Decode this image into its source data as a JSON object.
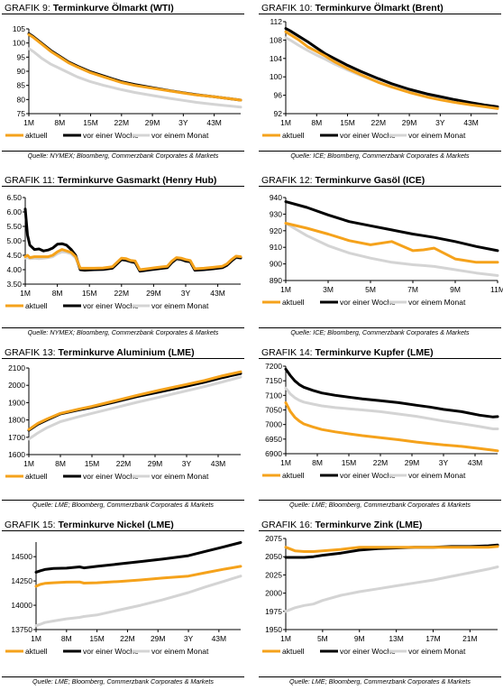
{
  "colors": {
    "aktuell": "#f5a21b",
    "woche": "#000000",
    "monat": "#d4d4d4"
  },
  "panels": [
    {
      "grafik": "GRAFIK 9:",
      "title": "Terminkurve Ölmarkt (WTI)",
      "source": "Quelle: NYMEX; Bloomberg, Commerzbank Corporates & Markets",
      "chart_data": {
        "type": "line",
        "x": [
          1,
          2,
          4,
          6,
          8,
          10,
          12,
          15,
          18,
          22,
          25,
          29,
          33,
          36,
          39,
          43,
          46,
          49
        ],
        "categories": [
          "1M",
          "8M",
          "15M",
          "22M",
          "29M",
          "3Y",
          "43M"
        ],
        "yticks": [
          75,
          80,
          85,
          90,
          95,
          100,
          105
        ],
        "ylim": [
          75,
          105
        ],
        "xlim": [
          1,
          49
        ],
        "series": [
          {
            "name": "aktuell",
            "key": "aktuell",
            "values": [
              103.0,
              102.0,
              99.5,
              97.0,
              95.0,
              93.0,
              91.5,
              89.5,
              88.0,
              86.0,
              85.0,
              84.0,
              83.0,
              82.3,
              81.6,
              81.0,
              80.4,
              79.8
            ]
          },
          {
            "name": "vor einer Woche",
            "key": "woche",
            "values": [
              103.3,
              102.3,
              99.8,
              97.3,
              95.3,
              93.3,
              91.8,
              89.8,
              88.3,
              86.3,
              85.3,
              84.2,
              83.1,
              82.4,
              81.7,
              81.0,
              80.4,
              79.8
            ]
          },
          {
            "name": "vor einem Monat",
            "key": "monat",
            "values": [
              98.0,
              97.0,
              94.5,
              92.5,
              91.0,
              89.5,
              88.0,
              86.3,
              85.0,
              83.5,
              82.5,
              81.4,
              80.4,
              79.7,
              79.0,
              78.3,
              77.8,
              77.3
            ]
          }
        ]
      }
    },
    {
      "grafik": "GRAFIK 10:",
      "title": "Terminkurve Ölmarkt (Brent)",
      "source": "Quelle: ICE; Bloomberg, Commerzbank Corporates & Markets",
      "chart_data": {
        "type": "line",
        "x": [
          1,
          2,
          4,
          6,
          8,
          10,
          12,
          15,
          18,
          22,
          25,
          29,
          33,
          36,
          39,
          43,
          46,
          49
        ],
        "categories": [
          "1M",
          "8M",
          "15M",
          "22M",
          "29M",
          "3Y",
          "43M"
        ],
        "yticks": [
          92,
          96,
          100,
          104,
          108,
          112
        ],
        "ylim": [
          92,
          112
        ],
        "xlim": [
          1,
          49
        ],
        "series": [
          {
            "name": "aktuell",
            "key": "aktuell",
            "values": [
              109.8,
              109.2,
              108.0,
              106.5,
              105.5,
              104.5,
              103.3,
              101.8,
              100.5,
              98.8,
              97.8,
              96.6,
              95.6,
              95.0,
              94.5,
              93.9,
              93.5,
              93.1
            ]
          },
          {
            "name": "vor einer Woche",
            "key": "woche",
            "values": [
              110.5,
              110.0,
              108.8,
              107.6,
              106.3,
              105.0,
              104.0,
              102.5,
              101.2,
              99.6,
              98.5,
              97.3,
              96.3,
              95.7,
              95.1,
              94.4,
              93.9,
              93.5
            ]
          },
          {
            "name": "vor einem Monat",
            "key": "monat",
            "values": [
              108.5,
              108.0,
              106.8,
              105.7,
              104.7,
              103.8,
              102.8,
              101.5,
              100.3,
              98.8,
              97.8,
              96.7,
              95.8,
              95.2,
              94.6,
              94.0,
              93.6,
              93.2
            ]
          }
        ]
      }
    },
    {
      "grafik": "GRAFIK 11:",
      "title": "Terminkurve Gasmarkt (Henry Hub)",
      "source": "Quelle: NYMEX; Bloomberg, Commerzbank Corporates & Markets",
      "chart_data": {
        "type": "line",
        "x": [
          1,
          1.5,
          2,
          3,
          4,
          5,
          6,
          7,
          8,
          9,
          10,
          11,
          12,
          13,
          14,
          15,
          16,
          18,
          20,
          21,
          22,
          23,
          24,
          25,
          26,
          27,
          28,
          30,
          32,
          33,
          34,
          35,
          36,
          37,
          38,
          40,
          42,
          44,
          45,
          46,
          47,
          48
        ],
        "categories": [
          "1M",
          "8M",
          "15M",
          "22M",
          "29M",
          "3Y",
          "43M"
        ],
        "yticks": [
          3.5,
          4.0,
          4.5,
          5.0,
          5.5,
          6.0,
          6.5
        ],
        "ylim": [
          3.5,
          6.5
        ],
        "xlim": [
          1,
          48
        ],
        "series": [
          {
            "name": "aktuell",
            "key": "aktuell",
            "values": [
              4.45,
              4.5,
              4.42,
              4.45,
              4.45,
              4.45,
              4.45,
              4.5,
              4.62,
              4.7,
              4.65,
              4.6,
              4.45,
              4.05,
              4.05,
              4.05,
              4.05,
              4.06,
              4.1,
              4.25,
              4.4,
              4.38,
              4.32,
              4.3,
              4.0,
              4.02,
              4.04,
              4.08,
              4.12,
              4.3,
              4.42,
              4.4,
              4.35,
              4.32,
              4.03,
              4.05,
              4.08,
              4.12,
              4.2,
              4.35,
              4.47,
              4.45
            ]
          },
          {
            "name": "vor einer Woche",
            "key": "woche",
            "values": [
              6.1,
              5.2,
              4.85,
              4.7,
              4.72,
              4.65,
              4.68,
              4.75,
              4.88,
              4.9,
              4.85,
              4.7,
              4.5,
              4.0,
              3.98,
              3.99,
              4.0,
              4.01,
              4.05,
              4.2,
              4.35,
              4.33,
              4.28,
              4.25,
              3.95,
              3.97,
              3.99,
              4.03,
              4.07,
              4.25,
              4.38,
              4.36,
              4.3,
              4.28,
              3.98,
              4.0,
              4.03,
              4.07,
              4.15,
              4.3,
              4.43,
              4.41
            ]
          },
          {
            "name": "vor einem Monat",
            "key": "monat",
            "values": [
              4.4,
              4.42,
              4.38,
              4.4,
              4.38,
              4.4,
              4.42,
              4.45,
              4.55,
              4.62,
              4.6,
              4.55,
              4.4,
              4.05,
              4.02,
              4.03,
              4.04,
              4.04,
              4.08,
              4.22,
              4.33,
              4.3,
              4.26,
              4.22,
              3.98,
              4.0,
              4.01,
              4.05,
              4.08,
              4.24,
              4.34,
              4.32,
              4.28,
              4.24,
              4.0,
              4.02,
              4.05,
              4.09,
              4.17,
              4.3,
              4.4,
              4.38
            ]
          }
        ]
      }
    },
    {
      "grafik": "GRAFIK 12:",
      "title": "Terminkurve Gasöl (ICE)",
      "source": "Quelle: ICE; Bloomberg, Commerzbank Corporates & Markets",
      "chart_data": {
        "type": "line",
        "x": [
          1,
          2,
          3,
          4,
          5,
          6,
          7,
          7.5,
          8,
          9,
          10,
          11
        ],
        "categories": [
          "1M",
          "3M",
          "5M",
          "7M",
          "9M",
          "11M"
        ],
        "yticks": [
          890,
          900,
          910,
          920,
          930,
          940
        ],
        "ylim": [
          890,
          940
        ],
        "xlim": [
          1,
          11
        ],
        "series": [
          {
            "name": "aktuell",
            "key": "aktuell",
            "values": [
              924.5,
              921.5,
              918.0,
              914.0,
              911.5,
              913.5,
              908.0,
              908.5,
              909.5,
              903.0,
              901.0,
              901.0
            ]
          },
          {
            "name": "vor einer Woche",
            "key": "woche",
            "values": [
              937.5,
              934.0,
              929.5,
              925.5,
              923.0,
              920.5,
              918.0,
              917.0,
              916.0,
              913.5,
              910.5,
              908.0
            ]
          },
          {
            "name": "vor einem Monat",
            "key": "monat",
            "values": [
              924.5,
              917.0,
              911.0,
              906.5,
              903.5,
              901.0,
              899.5,
              899.0,
              898.5,
              896.5,
              894.5,
              893.0
            ]
          }
        ]
      }
    },
    {
      "grafik": "GRAFIK 13:",
      "title": "Terminkurve Aluminium (LME)",
      "source": "Quelle: LME; Bloomberg, Commerzbank Corporates & Markets",
      "chart_data": {
        "type": "line",
        "x": [
          1,
          3,
          5,
          8,
          12,
          15,
          20,
          25,
          30,
          36,
          40,
          44,
          48
        ],
        "categories": [
          "1M",
          "8M",
          "15M",
          "22M",
          "29M",
          "3Y",
          "43M"
        ],
        "yticks": [
          1600,
          1700,
          1800,
          1900,
          2000,
          2100
        ],
        "ylim": [
          1600,
          2100
        ],
        "xlim": [
          1,
          48
        ],
        "series": [
          {
            "name": "aktuell",
            "key": "aktuell",
            "values": [
              1745,
              1780,
              1805,
              1838,
              1862,
              1878,
              1910,
              1942,
              1972,
              2005,
              2028,
              2055,
              2078
            ]
          },
          {
            "name": "vor einer Woche",
            "key": "woche",
            "values": [
              1740,
              1775,
              1800,
              1835,
              1858,
              1873,
              1903,
              1935,
              1962,
              1995,
              2018,
              2045,
              2068
            ]
          },
          {
            "name": "vor einem Monat",
            "key": "monat",
            "values": [
              1690,
              1725,
              1755,
              1790,
              1818,
              1838,
              1870,
              1902,
              1932,
              1968,
              1993,
              2020,
              2048
            ]
          }
        ]
      }
    },
    {
      "grafik": "GRAFIK 14:",
      "title": "Terminkurve Kupfer (LME)",
      "source": "Quelle: LME; Bloomberg, Commerzbank Corporates & Markets",
      "chart_data": {
        "type": "line",
        "x": [
          1,
          2,
          3,
          4,
          5,
          7,
          9,
          12,
          15,
          18,
          22,
          26,
          30,
          33,
          36,
          40,
          44,
          47,
          48
        ],
        "categories": [
          "1M",
          "8M",
          "15M",
          "22M",
          "29M",
          "3Y",
          "43M"
        ],
        "yticks": [
          6900,
          6950,
          7000,
          7050,
          7100,
          7150,
          7200
        ],
        "ylim": [
          6900,
          7200
        ],
        "xlim": [
          1,
          48
        ],
        "series": [
          {
            "name": "aktuell",
            "key": "aktuell",
            "values": [
              7075,
              7045,
              7025,
              7012,
              7002,
              6992,
              6983,
              6975,
              6968,
              6962,
              6955,
              6948,
              6940,
              6935,
              6930,
              6925,
              6918,
              6912,
              6910
            ]
          },
          {
            "name": "vor einer Woche",
            "key": "woche",
            "values": [
              7190,
              7168,
              7150,
              7137,
              7128,
              7117,
              7108,
              7100,
              7094,
              7088,
              7082,
              7075,
              7066,
              7060,
              7052,
              7044,
              7032,
              7026,
              7027
            ]
          },
          {
            "name": "vor einem Monat",
            "key": "monat",
            "values": [
              7125,
              7105,
              7092,
              7083,
              7077,
              7070,
              7064,
              7058,
              7054,
              7050,
              7044,
              7036,
              7028,
              7020,
              7012,
              7003,
              6993,
              6985,
              6985
            ]
          }
        ]
      }
    },
    {
      "grafik": "GRAFIK 15:",
      "title": "Terminkurve Nickel (LME)",
      "source": "Quelle: LME; Bloomberg, Commerzbank Corporates & Markets",
      "chart_data": {
        "type": "line",
        "x": [
          1,
          2,
          3,
          5,
          8,
          11,
          12,
          15,
          20,
          25,
          30,
          36,
          40,
          44,
          48
        ],
        "categories": [
          "1M",
          "8M",
          "15M",
          "22M",
          "29M",
          "3Y",
          "43M"
        ],
        "yticks": [
          13750,
          14000,
          14250,
          14500
        ],
        "ylim": [
          13750,
          14650
        ],
        "xlim": [
          1,
          48
        ],
        "series": [
          {
            "name": "aktuell",
            "key": "aktuell",
            "values": [
              14195,
              14215,
              14225,
              14232,
              14238,
              14240,
              14228,
              14232,
              14245,
              14260,
              14280,
              14300,
              14335,
              14370,
              14400
            ]
          },
          {
            "name": "vor einer Woche",
            "key": "woche",
            "values": [
              14340,
              14355,
              14368,
              14378,
              14382,
              14395,
              14385,
              14400,
              14425,
              14450,
              14475,
              14510,
              14555,
              14600,
              14645
            ]
          },
          {
            "name": "vor einem Monat",
            "key": "monat",
            "values": [
              13790,
              13805,
              13822,
              13838,
              13860,
              13875,
              13885,
              13900,
              13950,
              14000,
              14055,
              14130,
              14190,
              14245,
              14300
            ]
          }
        ]
      }
    },
    {
      "grafik": "GRAFIK 16:",
      "title": "Terminkurve Zink (LME)",
      "source": "Quelle: LME; Bloomberg, Commerzbank Corporates & Markets",
      "chart_data": {
        "type": "line",
        "x": [
          1,
          2,
          3,
          4,
          5,
          7,
          9,
          11,
          13,
          15,
          17,
          19,
          21,
          23,
          24
        ],
        "categories": [
          "1M",
          "5M",
          "9M",
          "13M",
          "17M",
          "21M"
        ],
        "yticks": [
          1950,
          1975,
          2000,
          2025,
          2050,
          2075
        ],
        "ylim": [
          1950,
          2075
        ],
        "xlim": [
          1,
          24
        ],
        "series": [
          {
            "name": "aktuell",
            "key": "aktuell",
            "values": [
              2063,
              2058,
              2057,
              2057,
              2058,
              2060,
              2063,
              2063,
              2063,
              2063,
              2063,
              2063,
              2063,
              2063,
              2064
            ]
          },
          {
            "name": "vor einer Woche",
            "key": "woche",
            "values": [
              2049,
              2049,
              2049,
              2050,
              2052,
              2055,
              2059,
              2061,
              2062,
              2063,
              2063,
              2064,
              2064,
              2065,
              2066
            ]
          },
          {
            "name": "vor einem Monat",
            "key": "monat",
            "values": [
              1975,
              1980,
              1983,
              1985,
              1990,
              1997,
              2002,
              2006,
              2010,
              2014,
              2018,
              2023,
              2028,
              2033,
              2036
            ]
          }
        ]
      }
    }
  ]
}
